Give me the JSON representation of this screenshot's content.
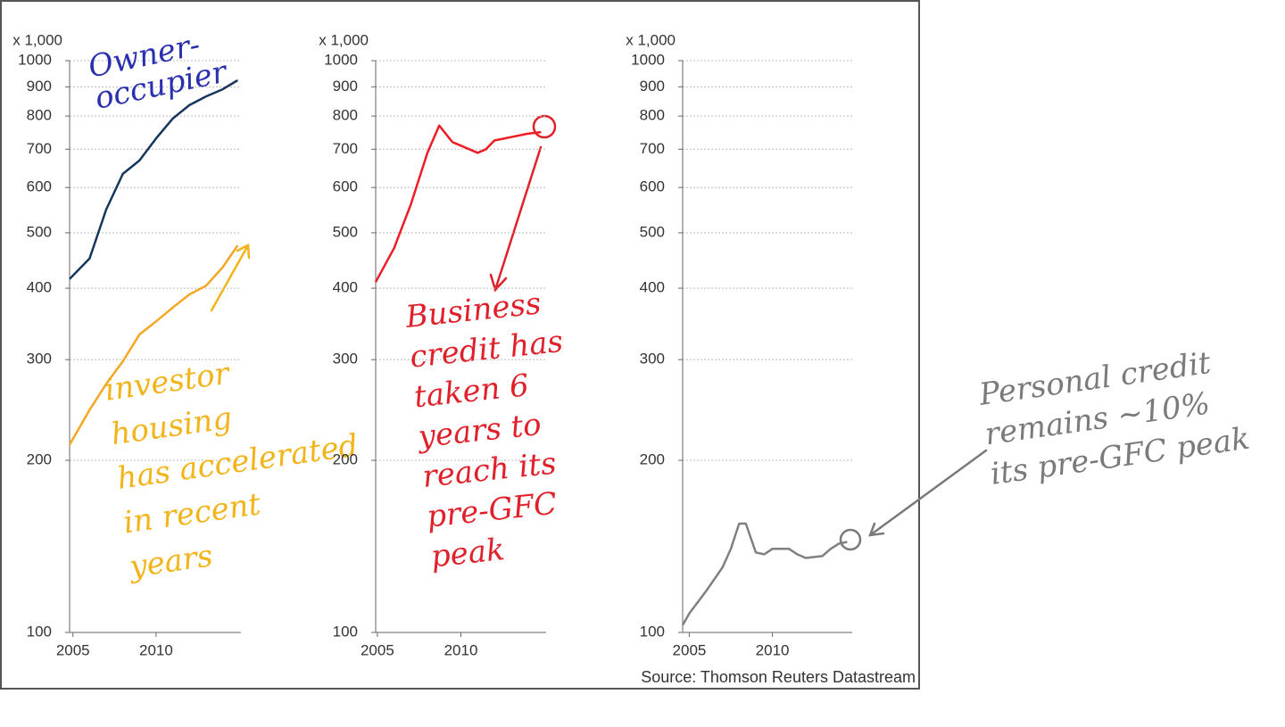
{
  "chart_data": [
    {
      "type": "line",
      "unit_label": "x 1,000",
      "log_y": true,
      "grid": true,
      "xlim": [
        2004.8,
        2015.1
      ],
      "xticks": [
        2005,
        2010
      ],
      "ylim": [
        100,
        1000
      ],
      "yticks": [
        100,
        200,
        300,
        400,
        500,
        600,
        700,
        800,
        900,
        1000
      ],
      "x": [
        2004.8,
        2006,
        2007,
        2008,
        2009,
        2010,
        2011,
        2012,
        2013,
        2014,
        2014.9
      ],
      "series": [
        {
          "color": "#17365d",
          "values": [
            415,
            451,
            549,
            634,
            669,
            731,
            792,
            836,
            866,
            891,
            924
          ]
        },
        {
          "color": "#f5a623",
          "values": [
            213,
            245,
            272,
            298,
            332,
            350,
            370,
            390,
            404,
            435,
            475
          ]
        }
      ],
      "annotations": [
        {
          "color": "#2a2fb0",
          "lines": [
            "Owner-",
            "occupier"
          ]
        },
        {
          "color": "#f2b419",
          "lines": [
            "investor",
            "housing",
            "has accelerated",
            "in recent",
            "years"
          ]
        }
      ]
    },
    {
      "type": "line",
      "unit_label": "x 1,000",
      "log_y": true,
      "grid": true,
      "xlim": [
        2004.9,
        2015.1
      ],
      "xticks": [
        2005,
        2010
      ],
      "ylim": [
        100,
        1000
      ],
      "yticks": [
        100,
        200,
        300,
        400,
        500,
        600,
        700,
        800,
        900,
        1000
      ],
      "x": [
        2004.9,
        2006,
        2007,
        2008,
        2008.7,
        2009.5,
        2010,
        2011,
        2011.5,
        2012,
        2013,
        2014,
        2014.8
      ],
      "series": [
        {
          "color": "#ee1c25",
          "values": [
            410,
            470,
            560,
            690,
            770,
            720,
            710,
            690,
            700,
            725,
            735,
            745,
            750
          ]
        }
      ],
      "annotations": [
        {
          "color": "#e0202a",
          "lines": [
            "Business",
            "credit has",
            "taken 6",
            "years to",
            "reach its",
            "pre-GFC",
            "peak"
          ]
        }
      ]
    },
    {
      "type": "line",
      "unit_label": "x 1,000",
      "log_y": true,
      "grid": true,
      "xlim": [
        2004.6,
        2014.8
      ],
      "xticks": [
        2005,
        2010
      ],
      "ylim": [
        100,
        1000
      ],
      "yticks": [
        100,
        200,
        300,
        400,
        500,
        600,
        700,
        800,
        900,
        1000
      ],
      "x": [
        2004.6,
        2005,
        2006,
        2007,
        2007.5,
        2008,
        2008.4,
        2009,
        2009.5,
        2010,
        2011,
        2011.5,
        2012,
        2013,
        2013.5,
        2014,
        2014.5
      ],
      "series": [
        {
          "color": "#808080",
          "values": [
            103,
            108,
            118,
            130,
            140,
            155,
            155,
            138,
            137,
            140,
            140,
            137,
            135,
            136,
            140,
            143,
            144
          ]
        }
      ],
      "annotations": [
        {
          "color": "#7a7a7a",
          "lines": [
            "Personal credit",
            "remains ~10%",
            "its pre-GFC peak"
          ]
        }
      ]
    }
  ],
  "source": "Source: Thomson Reuters Datastream"
}
